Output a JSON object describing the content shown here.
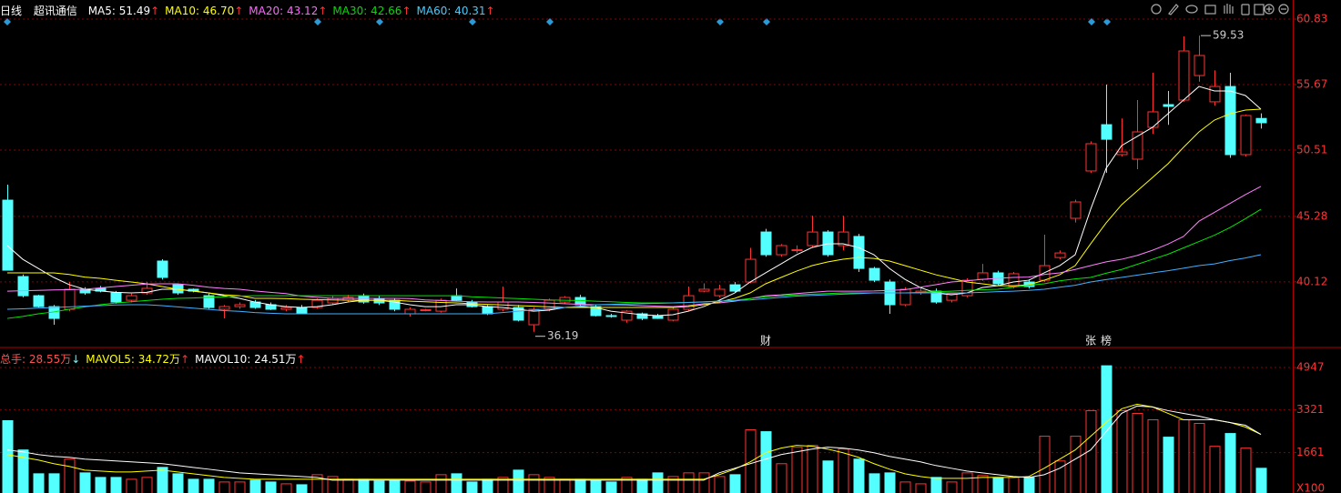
{
  "chart_data": [
    {
      "type": "candlestick",
      "period": "日线",
      "title": "超讯通信",
      "up_color": "#ff3232",
      "down_color": "#54ffff",
      "open": [
        46.56,
        40.54,
        39.03,
        38.17,
        37.96,
        39.54,
        39.61,
        39.25,
        38.67,
        39.25,
        41.76,
        39.89,
        39.54,
        39.03,
        37.96,
        38.17,
        38.53,
        38.32,
        37.96,
        38.1,
        38.1,
        38.46,
        38.67,
        39.03,
        38.82,
        38.67,
        37.6,
        37.89,
        37.81,
        39.03,
        38.53,
        38.17,
        37.96,
        38.1,
        36.74,
        37.96,
        38.53,
        38.89,
        38.17,
        37.46,
        37.1,
        37.6,
        37.46,
        37.1,
        37.96,
        39.39,
        39.03,
        39.89,
        40.11,
        44.05,
        42.26,
        42.61,
        42.98,
        44.05,
        42.98,
        43.7,
        41.18,
        40.11,
        38.32,
        39.25,
        39.39,
        38.67,
        39.03,
        40.32,
        40.83,
        39.75,
        40.11,
        40.25,
        42.04,
        45.13,
        48.86,
        52.51,
        50.15,
        49.79,
        52.3,
        54.09,
        54.45,
        56.38,
        54.31,
        55.52,
        50.15,
        53.0
      ],
      "high": [
        47.78,
        40.7,
        39.1,
        38.3,
        40.11,
        39.7,
        39.8,
        39.4,
        39.2,
        40.11,
        41.9,
        40.0,
        39.6,
        39.2,
        38.3,
        38.5,
        38.7,
        38.5,
        38.3,
        38.3,
        38.8,
        39.0,
        39.1,
        39.2,
        39.0,
        38.8,
        38.1,
        38.0,
        38.8,
        39.6,
        38.7,
        38.3,
        39.75,
        38.3,
        38.1,
        38.8,
        39.0,
        39.1,
        38.3,
        37.6,
        37.9,
        37.7,
        37.6,
        38.1,
        39.75,
        40.0,
        39.9,
        40.1,
        42.8,
        44.3,
        43.1,
        43.0,
        45.34,
        44.2,
        45.34,
        43.9,
        41.3,
        40.3,
        39.7,
        39.6,
        39.6,
        39.2,
        40.4,
        41.54,
        41.0,
        40.9,
        40.3,
        43.84,
        42.6,
        46.6,
        51.2,
        55.67,
        53.0,
        54.45,
        56.6,
        55.17,
        59.47,
        59.53,
        56.8,
        56.6,
        53.3,
        53.4
      ],
      "low": [
        41.04,
        38.9,
        38.1,
        36.74,
        37.8,
        39.1,
        39.3,
        38.4,
        38.5,
        39.1,
        40.3,
        39.1,
        39.3,
        38.0,
        37.24,
        38.0,
        38.0,
        37.9,
        37.8,
        37.6,
        38.0,
        38.3,
        38.5,
        38.4,
        38.3,
        37.8,
        37.4,
        37.8,
        37.7,
        38.6,
        38.1,
        37.5,
        37.8,
        37.0,
        36.19,
        37.8,
        38.4,
        38.2,
        37.4,
        37.3,
        36.9,
        37.1,
        37.2,
        37.0,
        37.8,
        39.3,
        38.9,
        39.3,
        40.0,
        42.1,
        42.1,
        42.4,
        42.8,
        42.1,
        42.6,
        40.9,
        40.1,
        37.6,
        38.2,
        39.1,
        38.4,
        38.5,
        38.9,
        40.2,
        39.8,
        39.6,
        39.6,
        40.1,
        41.9,
        44.8,
        48.7,
        48.71,
        50.0,
        49.0,
        51.8,
        52.5,
        54.3,
        55.9,
        54.0,
        49.9,
        50.0,
        52.2
      ],
      "close": [
        41.04,
        39.03,
        38.17,
        37.24,
        39.54,
        39.25,
        39.39,
        38.53,
        39.03,
        39.61,
        40.47,
        39.25,
        39.39,
        38.1,
        38.17,
        38.32,
        38.1,
        37.96,
        38.1,
        37.67,
        38.67,
        38.82,
        38.89,
        38.53,
        38.46,
        37.96,
        37.96,
        37.92,
        38.67,
        38.67,
        38.17,
        37.6,
        38.53,
        37.1,
        37.96,
        38.67,
        38.89,
        38.32,
        37.46,
        37.42,
        37.81,
        37.24,
        37.24,
        37.96,
        39.03,
        39.54,
        39.54,
        39.39,
        41.9,
        42.26,
        42.98,
        42.65,
        44.05,
        42.26,
        44.05,
        41.18,
        40.25,
        38.32,
        39.54,
        39.39,
        38.53,
        39.18,
        40.25,
        40.83,
        39.97,
        40.76,
        39.75,
        41.4,
        42.4,
        46.42,
        51.01,
        51.36,
        50.36,
        51.94,
        53.52,
        53.95,
        58.32,
        57.96,
        55.52,
        50.15,
        53.23,
        52.66
      ],
      "series": [
        {
          "label": "MA5: 51.49",
          "trend": "↑",
          "trend_color": "#ff3232",
          "label_color": "#ffffff",
          "color": "#ffffff",
          "values": [
            42.98,
            41.9,
            41.18,
            40.47,
            39.9,
            39.54,
            39.4,
            39.3,
            39.25,
            39.3,
            39.54,
            39.54,
            39.4,
            39.25,
            39.03,
            38.82,
            38.53,
            38.32,
            38.17,
            38.1,
            38.17,
            38.32,
            38.53,
            38.67,
            38.67,
            38.53,
            38.32,
            38.17,
            38.17,
            38.32,
            38.32,
            38.17,
            38.1,
            37.96,
            37.81,
            37.89,
            38.1,
            38.17,
            38.1,
            37.81,
            37.67,
            37.53,
            37.46,
            37.53,
            37.81,
            38.17,
            38.67,
            39.25,
            40.11,
            40.83,
            41.54,
            42.26,
            42.83,
            43.12,
            43.12,
            42.83,
            42.26,
            41.18,
            40.32,
            39.67,
            39.25,
            39.1,
            39.25,
            39.67,
            39.82,
            40.11,
            40.25,
            40.83,
            41.4,
            42.26,
            45.84,
            49.07,
            50.86,
            51.58,
            52.3,
            53.37,
            54.45,
            55.52,
            55.17,
            55.17,
            54.81,
            53.73
          ]
        },
        {
          "label": "MA10: 46.70",
          "trend": "↑",
          "trend_color": "#ff3232",
          "label_color": "#ffff00",
          "color": "#ffff00",
          "values": [
            40.83,
            40.83,
            40.83,
            40.83,
            40.7,
            40.5,
            40.4,
            40.25,
            40.11,
            39.97,
            39.75,
            39.54,
            39.39,
            39.25,
            39.1,
            39.03,
            38.82,
            38.82,
            38.8,
            38.75,
            38.72,
            38.7,
            38.68,
            38.67,
            38.67,
            38.67,
            38.6,
            38.55,
            38.5,
            38.46,
            38.4,
            38.35,
            38.3,
            38.25,
            38.2,
            38.15,
            38.1,
            38.1,
            38.1,
            38.1,
            38.1,
            38.1,
            38.1,
            38.1,
            38.17,
            38.32,
            38.53,
            38.82,
            39.25,
            39.97,
            40.47,
            40.97,
            41.4,
            41.69,
            41.9,
            42.04,
            41.97,
            41.76,
            41.4,
            41.04,
            40.68,
            40.4,
            40.11,
            39.97,
            39.82,
            39.82,
            39.89,
            40.25,
            40.68,
            41.4,
            43.12,
            44.77,
            46.2,
            47.28,
            48.35,
            49.43,
            50.72,
            51.94,
            52.87,
            53.37,
            53.66,
            53.73
          ]
        },
        {
          "label": "MA20: 43.12",
          "trend": "↑",
          "trend_color": "#ff3232",
          "label_color": "#ff66ff",
          "color": "#ff80ff",
          "values": [
            39.39,
            39.42,
            39.45,
            39.48,
            39.5,
            39.54,
            39.65,
            39.75,
            39.85,
            39.95,
            39.97,
            39.97,
            39.85,
            39.7,
            39.6,
            39.54,
            39.4,
            39.3,
            39.2,
            39.0,
            38.9,
            38.82,
            38.82,
            38.82,
            38.82,
            38.82,
            38.8,
            38.7,
            38.65,
            38.6,
            38.55,
            38.53,
            38.53,
            38.53,
            38.5,
            38.45,
            38.4,
            38.35,
            38.32,
            38.32,
            38.3,
            38.25,
            38.2,
            38.17,
            38.25,
            38.4,
            38.46,
            38.6,
            38.8,
            39.03,
            39.1,
            39.2,
            39.3,
            39.39,
            39.39,
            39.39,
            39.4,
            39.45,
            39.5,
            39.7,
            39.9,
            40.11,
            40.2,
            40.32,
            40.4,
            40.47,
            40.5,
            40.7,
            40.83,
            41.1,
            41.4,
            41.7,
            41.9,
            42.2,
            42.61,
            43.1,
            43.7,
            44.9,
            45.6,
            46.3,
            47.0,
            47.64
          ]
        },
        {
          "label": "MA30: 42.66",
          "trend": "↑",
          "trend_color": "#ff3232",
          "label_color": "#00dd00",
          "color": "#00e600",
          "values": [
            37.24,
            37.4,
            37.6,
            37.75,
            37.96,
            38.15,
            38.32,
            38.45,
            38.55,
            38.65,
            38.75,
            38.82,
            38.85,
            38.9,
            38.95,
            39.0,
            39.03,
            39.03,
            39.03,
            39.03,
            39.03,
            39.03,
            39.03,
            39.03,
            39.03,
            39.03,
            39.03,
            39.03,
            39.03,
            39.03,
            38.95,
            38.9,
            38.85,
            38.8,
            38.75,
            38.7,
            38.67,
            38.65,
            38.6,
            38.55,
            38.5,
            38.46,
            38.46,
            38.46,
            38.5,
            38.55,
            38.6,
            38.67,
            38.8,
            38.95,
            39.03,
            39.1,
            39.15,
            39.2,
            39.25,
            39.25,
            39.25,
            39.25,
            39.25,
            39.3,
            39.35,
            39.39,
            39.45,
            39.5,
            39.54,
            39.7,
            39.85,
            39.97,
            40.2,
            40.35,
            40.47,
            40.8,
            41.1,
            41.5,
            41.9,
            42.3,
            42.8,
            43.3,
            43.8,
            44.4,
            45.1,
            45.84
          ]
        },
        {
          "label": "MA60: 40.31",
          "trend": "↑",
          "trend_color": "#ff3232",
          "label_color": "#44ccff",
          "color": "#40b0ff",
          "values": [
            37.96,
            38.0,
            38.05,
            38.1,
            38.15,
            38.2,
            38.25,
            38.3,
            38.32,
            38.32,
            38.25,
            38.15,
            38.05,
            37.95,
            37.85,
            37.8,
            37.7,
            37.65,
            37.6,
            37.6,
            37.6,
            37.6,
            37.6,
            37.6,
            37.6,
            37.6,
            37.6,
            37.6,
            37.6,
            37.6,
            37.6,
            37.6,
            37.7,
            37.81,
            37.9,
            38.0,
            38.1,
            38.2,
            38.32,
            38.35,
            38.38,
            38.4,
            38.43,
            38.46,
            38.5,
            38.53,
            38.6,
            38.65,
            38.7,
            38.8,
            38.9,
            39.0,
            39.05,
            39.1,
            39.15,
            39.2,
            39.25,
            39.25,
            39.25,
            39.25,
            39.25,
            39.25,
            39.25,
            39.3,
            39.35,
            39.39,
            39.45,
            39.54,
            39.7,
            39.85,
            40.11,
            40.3,
            40.47,
            40.65,
            40.83,
            41.0,
            41.2,
            41.4,
            41.54,
            41.8,
            42.0,
            42.26
          ]
        }
      ],
      "high_label": 59.53,
      "low_label": 36.19,
      "events": [
        null,
        null,
        null,
        null,
        null,
        null,
        null,
        null,
        null,
        null,
        null,
        null,
        null,
        null,
        null,
        null,
        null,
        null,
        null,
        null,
        null,
        null,
        null,
        null,
        null,
        null,
        null,
        null,
        null,
        null,
        null,
        null,
        null,
        null,
        null,
        null,
        null,
        null,
        null,
        null,
        null,
        null,
        null,
        null,
        null,
        null,
        null,
        null,
        null,
        "财",
        null,
        null,
        null,
        null,
        null,
        null,
        null,
        null,
        null,
        null,
        null,
        null,
        null,
        null,
        null,
        null,
        null,
        null,
        null,
        null,
        "张",
        "榜",
        null,
        null,
        null,
        null,
        null,
        null,
        null,
        null,
        null,
        null
      ],
      "ylim": [
        34.95,
        61.26
      ],
      "yticks": [
        40.12,
        45.28,
        50.51,
        55.67,
        60.83
      ],
      "grid": true,
      "tick_color": "#ff3232"
    },
    {
      "type": "bar",
      "title": "总手: 28.55万",
      "trend": "↓",
      "trend_color": "#54ffff",
      "label_color": "#ff5050",
      "values": [
        2895,
        1765,
        847,
        847,
        1412,
        882,
        706,
        706,
        635,
        706,
        1094,
        847,
        635,
        635,
        530,
        530,
        600,
        530,
        459,
        424,
        812,
        741,
        635,
        635,
        565,
        600,
        565,
        530,
        812,
        847,
        530,
        635,
        706,
        988,
        812,
        706,
        635,
        635,
        600,
        530,
        706,
        635,
        882,
        741,
        882,
        882,
        741,
        812,
        2542,
        2471,
        1236,
        1871,
        1942,
        1341,
        1800,
        1412,
        847,
        882,
        530,
        459,
        706,
        530,
        882,
        777,
        706,
        706,
        706,
        2295,
        1341,
        2295,
        3283,
        5013,
        3283,
        3177,
        2930,
        2259,
        2930,
        2789,
        1906,
        2400,
        1836,
        1059
      ],
      "series": [
        {
          "label": "MAVOL5: 34.72万",
          "trend": "↑",
          "trend_color": "#ff3232",
          "label_color": "#ffff00",
          "color": "#ffff00",
          "values": [
            1589,
            1483,
            1377,
            1236,
            1130,
            988,
            953,
            918,
            918,
            953,
            988,
            918,
            847,
            777,
            706,
            671,
            635,
            635,
            635,
            635,
            635,
            635,
            635,
            635,
            635,
            635,
            635,
            635,
            635,
            635,
            635,
            635,
            635,
            635,
            635,
            635,
            635,
            635,
            635,
            635,
            635,
            635,
            635,
            635,
            635,
            635,
            812,
            1024,
            1306,
            1659,
            1836,
            1942,
            1906,
            1800,
            1659,
            1483,
            1236,
            1024,
            847,
            741,
            671,
            671,
            671,
            706,
            706,
            706,
            741,
            1059,
            1412,
            1765,
            2295,
            2824,
            3353,
            3530,
            3424,
            3177,
            2930,
            2930,
            2930,
            2824,
            2648,
            2365
          ]
        },
        {
          "label": "MAVOL10: 24.51万",
          "trend": "↑",
          "trend_color": "#ff3232",
          "label_color": "#ffffff",
          "color": "#ffffff",
          "values": [
            1765,
            1694,
            1589,
            1518,
            1483,
            1412,
            1377,
            1341,
            1306,
            1271,
            1236,
            1165,
            1094,
            1024,
            953,
            883,
            847,
            812,
            777,
            741,
            706,
            600,
            600,
            600,
            600,
            600,
            600,
            600,
            600,
            600,
            600,
            600,
            600,
            600,
            600,
            600,
            600,
            600,
            600,
            600,
            600,
            600,
            600,
            600,
            600,
            600,
            883,
            1059,
            1236,
            1412,
            1589,
            1694,
            1800,
            1871,
            1836,
            1765,
            1659,
            1518,
            1412,
            1306,
            1165,
            1059,
            953,
            883,
            812,
            741,
            706,
            812,
            1059,
            1412,
            1765,
            2471,
            3177,
            3459,
            3424,
            3283,
            3177,
            3071,
            2930,
            2824,
            2718,
            2365
          ]
        }
      ],
      "unit_label": "X100",
      "ylim": [
        0,
        5684
      ],
      "yticks": [
        1661,
        3321,
        4947
      ],
      "grid": true,
      "tick_color": "#ff3232"
    }
  ]
}
